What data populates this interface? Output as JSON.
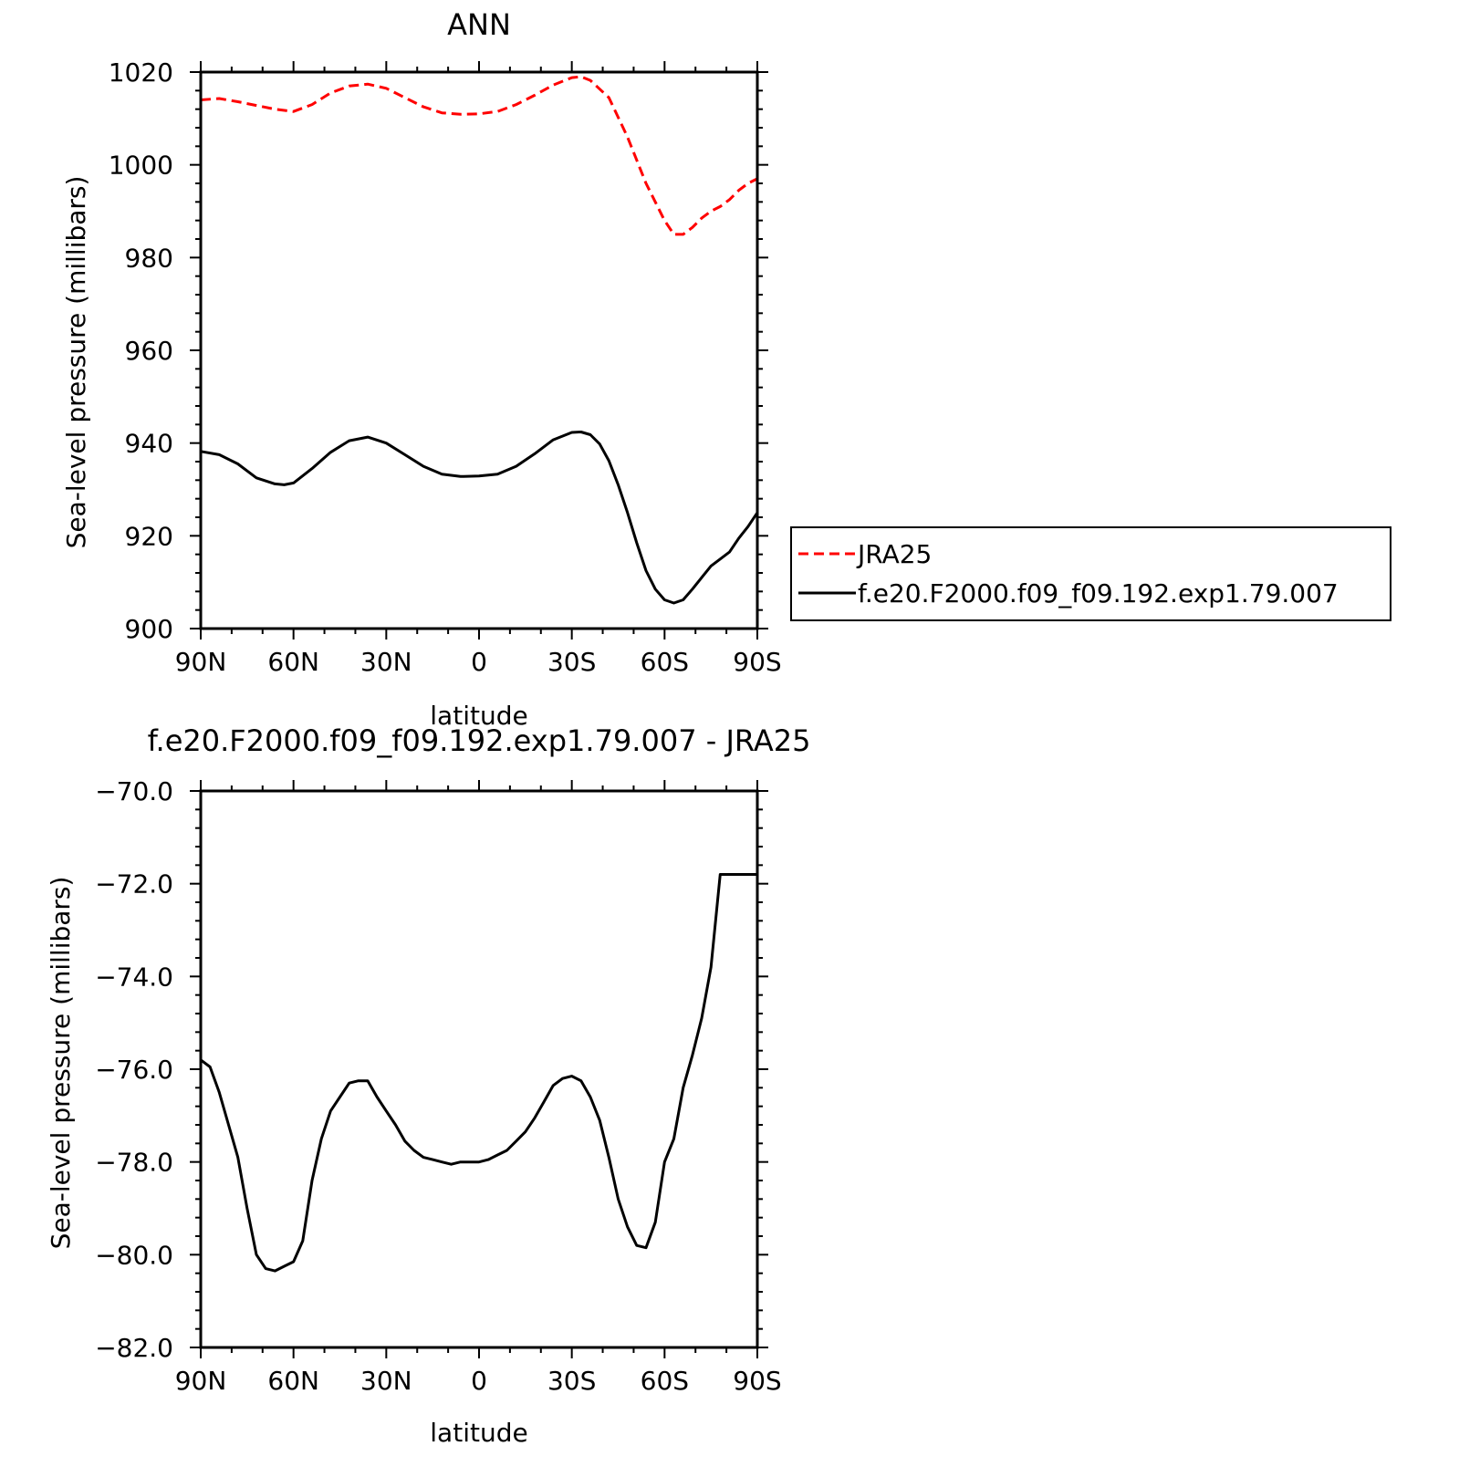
{
  "chart_data": [
    {
      "type": "line",
      "title": "ANN",
      "xlabel": "latitude",
      "ylabel": "Sea-level pressure (millibars)",
      "x_ticks": [
        {
          "value": -90,
          "label": "90N"
        },
        {
          "value": -60,
          "label": "60N"
        },
        {
          "value": -30,
          "label": "30N"
        },
        {
          "value": 0,
          "label": "0"
        },
        {
          "value": 30,
          "label": "30S"
        },
        {
          "value": 60,
          "label": "60S"
        },
        {
          "value": 90,
          "label": "90S"
        }
      ],
      "xlim": [
        -90,
        90
      ],
      "y_ticks": [
        {
          "value": 900,
          "label": "900"
        },
        {
          "value": 920,
          "label": "920"
        },
        {
          "value": 940,
          "label": "940"
        },
        {
          "value": 960,
          "label": "960"
        },
        {
          "value": 980,
          "label": "980"
        },
        {
          "value": 1000,
          "label": "1000"
        },
        {
          "value": 1020,
          "label": "1020"
        }
      ],
      "ylim": [
        900,
        1020
      ],
      "grid": false,
      "legend_position": "right",
      "series": [
        {
          "name": "JRA25",
          "color": "#ff0000",
          "dash": "dashed",
          "x": [
            -90,
            -84,
            -78,
            -72,
            -66,
            -60,
            -54,
            -48,
            -42,
            -36,
            -30,
            -24,
            -18,
            -12,
            -6,
            0,
            6,
            12,
            18,
            24,
            30,
            33,
            36,
            42,
            48,
            54,
            60,
            63,
            66,
            69,
            72,
            75,
            78,
            81,
            84,
            87,
            90
          ],
          "y": [
            1014,
            1014.3,
            1013.6,
            1012.8,
            1012,
            1011.5,
            1013,
            1015.5,
            1017,
            1017.4,
            1016.5,
            1014.5,
            1012.5,
            1011.2,
            1010.9,
            1011,
            1011.5,
            1013,
            1015,
            1017.2,
            1018.8,
            1019,
            1018.2,
            1014.5,
            1006,
            996,
            988,
            985,
            985,
            986.5,
            988.5,
            990,
            991,
            992.5,
            994.5,
            996,
            997
          ]
        },
        {
          "name": "f.e20.F2000.f09_f09.192.exp1.79.007",
          "color": "#000000",
          "dash": "solid",
          "x": [
            -90,
            -84,
            -78,
            -72,
            -66,
            -63,
            -60,
            -54,
            -48,
            -42,
            -36,
            -30,
            -24,
            -18,
            -12,
            -6,
            0,
            6,
            12,
            18,
            24,
            30,
            33,
            36,
            39,
            42,
            45,
            48,
            51,
            54,
            57,
            60,
            63,
            66,
            69,
            72,
            75,
            78,
            81,
            84,
            87,
            90
          ],
          "y": [
            938.2,
            937.5,
            935.5,
            932.5,
            931.2,
            931,
            931.4,
            934.5,
            938,
            940.5,
            941.3,
            940,
            937.5,
            935,
            933.3,
            932.8,
            932.9,
            933.3,
            935,
            937.7,
            940.7,
            942.3,
            942.4,
            941.8,
            939.8,
            936.2,
            931,
            925,
            918.5,
            912.5,
            908.5,
            906.2,
            905.5,
            906.2,
            908.5,
            911,
            913.5,
            915,
            916.5,
            919.5,
            922,
            925
          ]
        }
      ]
    },
    {
      "type": "line",
      "title": "f.e20.F2000.f09_f09.192.exp1.79.007 - JRA25",
      "xlabel": "latitude",
      "ylabel": "Sea-level pressure (millibars)",
      "x_ticks": [
        {
          "value": -90,
          "label": "90N"
        },
        {
          "value": -60,
          "label": "60N"
        },
        {
          "value": -30,
          "label": "30N"
        },
        {
          "value": 0,
          "label": "0"
        },
        {
          "value": 30,
          "label": "30S"
        },
        {
          "value": 60,
          "label": "60S"
        },
        {
          "value": 90,
          "label": "90S"
        }
      ],
      "xlim": [
        -90,
        90
      ],
      "y_ticks": [
        {
          "value": -82,
          "label": "-82.0"
        },
        {
          "value": -80,
          "label": "-80.0"
        },
        {
          "value": -78,
          "label": "-78.0"
        },
        {
          "value": -76,
          "label": "-76.0"
        },
        {
          "value": -74,
          "label": "-74.0"
        },
        {
          "value": -72,
          "label": "-72.0"
        },
        {
          "value": -70,
          "label": "-70.0"
        }
      ],
      "ylim": [
        -82,
        -70
      ],
      "grid": false,
      "series": [
        {
          "color": "#000000",
          "dash": "solid",
          "x": [
            -90,
            -87,
            -84,
            -81,
            -78,
            -75,
            -72,
            -69,
            -66,
            -63,
            -60,
            -57,
            -54,
            -51,
            -48,
            -45,
            -42,
            -39,
            -36,
            -33,
            -30,
            -27,
            -24,
            -21,
            -18,
            -15,
            -12,
            -9,
            -6,
            -3,
            0,
            3,
            6,
            9,
            12,
            15,
            18,
            21,
            24,
            27,
            30,
            33,
            36,
            39,
            42,
            45,
            48,
            51,
            54,
            57,
            60,
            63,
            66,
            69,
            72,
            75,
            78,
            81,
            84,
            87,
            90
          ],
          "y": [
            -75.8,
            -75.95,
            -76.5,
            -77.2,
            -77.9,
            -79.0,
            -80.0,
            -80.3,
            -80.35,
            -80.25,
            -80.15,
            -79.7,
            -78.4,
            -77.5,
            -76.9,
            -76.6,
            -76.3,
            -76.25,
            -76.25,
            -76.6,
            -76.9,
            -77.2,
            -77.55,
            -77.75,
            -77.9,
            -77.95,
            -78.0,
            -78.05,
            -78.0,
            -78.0,
            -78.0,
            -77.95,
            -77.85,
            -77.75,
            -77.55,
            -77.35,
            -77.05,
            -76.7,
            -76.35,
            -76.2,
            -76.15,
            -76.25,
            -76.6,
            -77.1,
            -77.9,
            -78.8,
            -79.4,
            -79.8,
            -79.85,
            -79.3,
            -78.0,
            -77.5,
            -76.4,
            -75.7,
            -74.9,
            -73.8,
            -71.8,
            -71.8,
            -71.8,
            -71.8,
            -71.8
          ]
        }
      ]
    }
  ]
}
